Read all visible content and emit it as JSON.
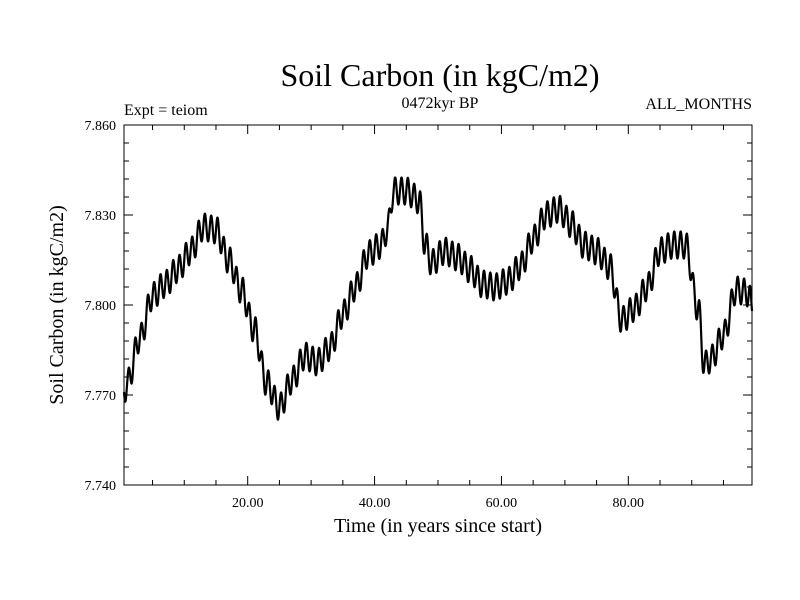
{
  "chart_data": {
    "type": "line",
    "title": "Soil Carbon (in kgC/m2)",
    "subtitle": "0472kyr BP",
    "annotation_left": "Expt = teiom",
    "annotation_right": "ALL_MONTHS",
    "xlabel": "Time (in years since start)",
    "ylabel": "Soil Carbon (in kgC/m2)",
    "xlim": [
      0.5,
      99.5
    ],
    "ylim": [
      7.74,
      7.86
    ],
    "x_ticks": [
      20,
      40,
      60,
      80
    ],
    "x_tick_labels": [
      "20.00",
      "40.00",
      "60.00",
      "80.00"
    ],
    "y_ticks": [
      7.74,
      7.77,
      7.8,
      7.83,
      7.86
    ],
    "y_tick_labels": [
      "7.740",
      "7.770",
      "7.800",
      "7.830",
      "7.860"
    ],
    "seasonal_amplitude": 0.0045,
    "series": [
      {
        "name": "Soil Carbon",
        "x": [
          0.5,
          1,
          3,
          5,
          7,
          9,
          11,
          13,
          15,
          17,
          19,
          21,
          23,
          25,
          27,
          29,
          31,
          33,
          35,
          37,
          39,
          41,
          42,
          43,
          45,
          47,
          48,
          49,
          51,
          53,
          55,
          57,
          59,
          61,
          63,
          65,
          67,
          69,
          71,
          73,
          75,
          77,
          79,
          81,
          83,
          85,
          87,
          89,
          91,
          92,
          93,
          95,
          97,
          99,
          99.5
        ],
        "y": [
          7.771,
          7.774,
          7.789,
          7.803,
          7.807,
          7.812,
          7.818,
          7.826,
          7.825,
          7.815,
          7.805,
          7.792,
          7.774,
          7.766,
          7.775,
          7.783,
          7.781,
          7.786,
          7.797,
          7.806,
          7.817,
          7.82,
          7.825,
          7.838,
          7.838,
          7.835,
          7.82,
          7.814,
          7.818,
          7.816,
          7.812,
          7.807,
          7.806,
          7.808,
          7.813,
          7.822,
          7.83,
          7.832,
          7.827,
          7.82,
          7.818,
          7.813,
          7.795,
          7.799,
          7.806,
          7.818,
          7.82,
          7.82,
          7.799,
          7.78,
          7.782,
          7.79,
          7.805,
          7.804,
          7.798
        ]
      }
    ]
  }
}
